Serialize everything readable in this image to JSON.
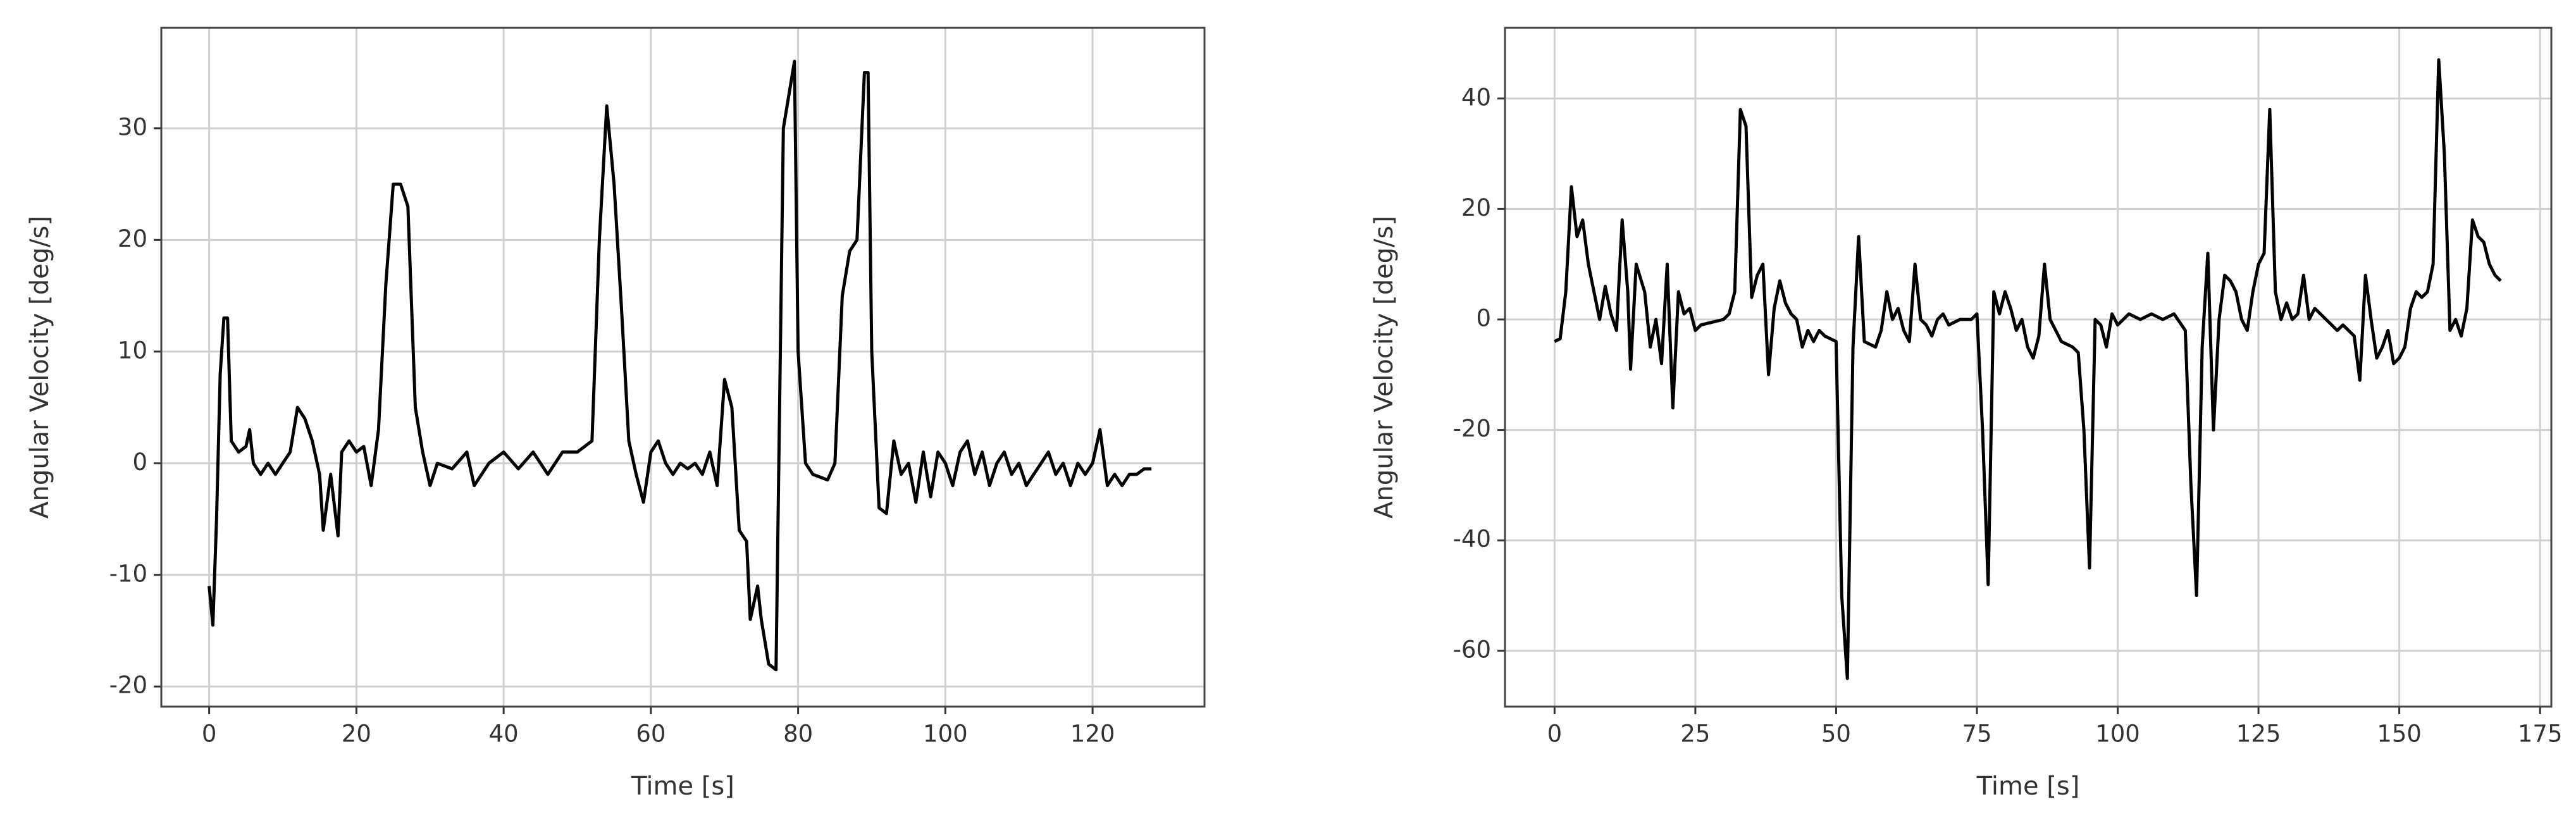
{
  "chart_data": [
    {
      "type": "line",
      "xlabel": "Time [s]",
      "ylabel": "Angular Velocity [deg/s]",
      "grid": true,
      "xlim": [
        -6.5,
        135.2
      ],
      "ylim": [
        -21.8,
        39
      ],
      "xticks": [
        0,
        20,
        40,
        60,
        80,
        100,
        120
      ],
      "yticks": [
        -20,
        -10,
        0,
        10,
        20,
        30
      ],
      "x": [
        0,
        0.5,
        1,
        1.5,
        2,
        2.5,
        3,
        4,
        5,
        5.5,
        6,
        7,
        8,
        9,
        10,
        11,
        12,
        13,
        14,
        15,
        15.5,
        16.5,
        17.5,
        18,
        19,
        20,
        21,
        22,
        23,
        24,
        25,
        26,
        27,
        28,
        29,
        30,
        31,
        33,
        35,
        36,
        38,
        40,
        42,
        44,
        46,
        48,
        50,
        52,
        53,
        54,
        55,
        56,
        57,
        58,
        59,
        60,
        61,
        62,
        63,
        64,
        65,
        66,
        67,
        68,
        69,
        70,
        71,
        72,
        73,
        73.5,
        74.5,
        75,
        76,
        77,
        78,
        79,
        79.5,
        80,
        81,
        82,
        84,
        85,
        86,
        87,
        88,
        89,
        89.5,
        90,
        91,
        92,
        93,
        94,
        95,
        96,
        97,
        98,
        99,
        100,
        101,
        102,
        103,
        104,
        105,
        106,
        107,
        108,
        109,
        110,
        111,
        112,
        113,
        114,
        115,
        116,
        117,
        118,
        119,
        120,
        121,
        122,
        123,
        124,
        125,
        126,
        127,
        128
      ],
      "series": [
        {
          "color": "#000000",
          "values": [
            -11,
            -14.5,
            -5,
            8,
            13,
            13,
            2,
            1,
            1.5,
            3,
            0,
            -1,
            0,
            -1,
            0,
            1,
            5,
            4,
            2,
            -1,
            -6,
            -1,
            -6.5,
            1,
            2,
            1,
            1.5,
            -2,
            3,
            16,
            25,
            25,
            23,
            5,
            1,
            -2,
            0,
            -0.5,
            1,
            -2,
            0,
            1,
            -0.5,
            1,
            -1,
            1,
            1,
            2,
            20,
            32,
            25,
            14,
            2,
            -1,
            -3.5,
            1,
            2,
            0,
            -1,
            0,
            -0.5,
            0,
            -1,
            1,
            -2,
            7.5,
            5,
            -6,
            -7,
            -14,
            -11,
            -14,
            -18,
            -18.5,
            30,
            34,
            36,
            10,
            0,
            -1,
            -1.5,
            0,
            15,
            19,
            20,
            35,
            35,
            10,
            -4,
            -4.5,
            2,
            -1,
            0,
            -3.5,
            1,
            -3,
            1,
            0,
            -2,
            1,
            2,
            -1,
            1,
            -2,
            0,
            1,
            -1,
            0,
            -2,
            -1,
            0,
            1,
            -1,
            0,
            -2,
            0,
            -1,
            0,
            3,
            -2,
            -1,
            -2,
            -1,
            -1,
            -0.5,
            -0.5
          ]
        }
      ]
    },
    {
      "type": "line",
      "xlabel": "Time [s]",
      "ylabel": "Angular Velocity [deg/s]",
      "grid": true,
      "xlim": [
        -8.8,
        177
      ],
      "ylim": [
        -70.1,
        52.8
      ],
      "xticks": [
        0,
        25,
        50,
        75,
        100,
        125,
        150,
        175
      ],
      "yticks": [
        -60,
        -40,
        -20,
        0,
        20,
        40
      ],
      "x": [
        0,
        1,
        2,
        3,
        4,
        5,
        6,
        7,
        8,
        9,
        10,
        11,
        12,
        13,
        13.5,
        14.5,
        16,
        17,
        18,
        19,
        20,
        21,
        22,
        23,
        24,
        25,
        26,
        28,
        30,
        31,
        32,
        33,
        34,
        35,
        36,
        37,
        38,
        39,
        40,
        41,
        42,
        43,
        44,
        45,
        46,
        47,
        48,
        50,
        51,
        52,
        53,
        54,
        55,
        57,
        58,
        59,
        60,
        61,
        62,
        63,
        64,
        65,
        66,
        67,
        68,
        69,
        70,
        72,
        74,
        75,
        76,
        77,
        78,
        79,
        80,
        81,
        82,
        83,
        84,
        85,
        86,
        87,
        88,
        89,
        90,
        92,
        93,
        94,
        95,
        96,
        97,
        98,
        99,
        100,
        102,
        104,
        106,
        108,
        110,
        112,
        113,
        114,
        115,
        116,
        117,
        118,
        119,
        120,
        121,
        122,
        123,
        124,
        125,
        126,
        127,
        128,
        129,
        130,
        131,
        132,
        133,
        134,
        135,
        137,
        139,
        140,
        142,
        143,
        144,
        145,
        146,
        147,
        148,
        149,
        150,
        151,
        152,
        153,
        154,
        155,
        156,
        157,
        158,
        159,
        160,
        161,
        162,
        163,
        164,
        165,
        166,
        167,
        168
      ],
      "series": [
        {
          "color": "#000000",
          "values": [
            -4,
            -3.5,
            5,
            24,
            15,
            18,
            10,
            5,
            0,
            6,
            1,
            -2,
            18,
            5,
            -9,
            10,
            5,
            -5,
            0,
            -8,
            10,
            -16,
            5,
            1,
            2,
            -2,
            -1,
            -0.5,
            0,
            1,
            5,
            38,
            35,
            4,
            8,
            10,
            -10,
            2,
            7,
            3,
            1,
            0,
            -5,
            -2,
            -4,
            -2,
            -3,
            -4,
            -50,
            -65,
            -5,
            15,
            -4,
            -5,
            -2,
            5,
            0,
            2,
            -2,
            -4,
            10,
            0,
            -1,
            -3,
            0,
            1,
            -1,
            0,
            0,
            1,
            -20,
            -48,
            5,
            1,
            5,
            2,
            -2,
            0,
            -5,
            -7,
            -3,
            10,
            0,
            -2,
            -4,
            -5,
            -6,
            -20,
            -45,
            0,
            -1,
            -5,
            1,
            -1,
            1,
            0,
            1,
            0,
            1,
            -2,
            -30,
            -50,
            -5,
            12,
            -20,
            0,
            8,
            7,
            5,
            0,
            -2,
            5,
            10,
            12,
            38,
            5,
            0,
            3,
            0,
            1,
            8,
            0,
            2,
            0,
            -2,
            -1,
            -3,
            -11,
            8,
            0,
            -7,
            -5,
            -2,
            -8,
            -7,
            -5,
            2,
            5,
            4,
            5,
            10,
            47,
            30,
            -2,
            0,
            -3,
            2,
            18,
            15,
            14,
            10,
            8,
            7
          ]
        }
      ]
    }
  ]
}
